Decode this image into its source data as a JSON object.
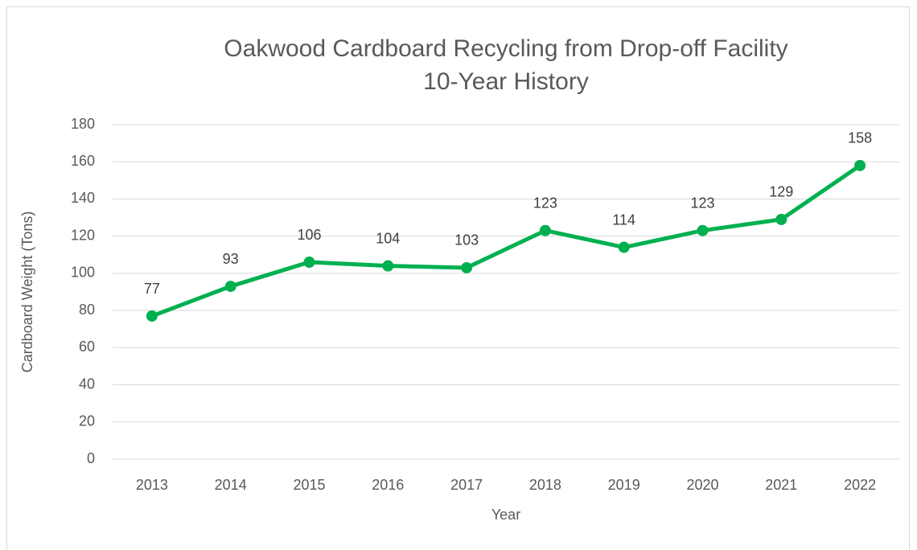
{
  "chart_data": {
    "type": "line",
    "title": [
      "Oakwood Cardboard Recycling from Drop-off Facility",
      "10-Year History"
    ],
    "x_label": "Year",
    "y_label": "Cardboard Weight (Tons)",
    "categories": [
      "2013",
      "2014",
      "2015",
      "2016",
      "2017",
      "2018",
      "2019",
      "2020",
      "2021",
      "2022"
    ],
    "values": [
      77,
      93,
      106,
      104,
      103,
      123,
      114,
      123,
      129,
      158
    ],
    "color": "#00b050",
    "ylim": [
      0,
      180
    ],
    "yticks": [
      0,
      20,
      40,
      60,
      80,
      100,
      120,
      140,
      160,
      180
    ],
    "grid": true
  }
}
